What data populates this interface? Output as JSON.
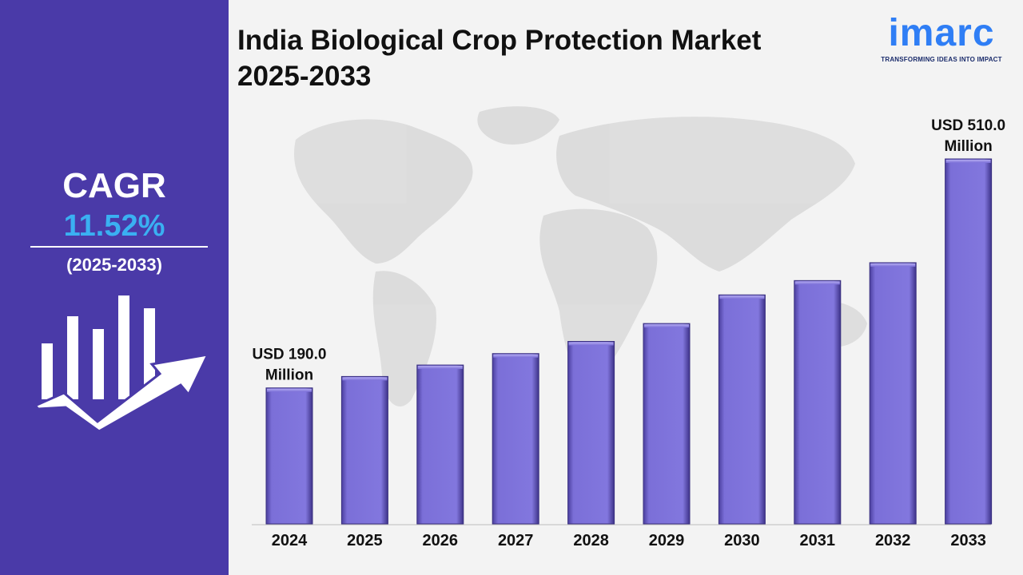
{
  "sidebar": {
    "cagr_label": "CAGR",
    "cagr_value": "11.52%",
    "cagr_period": "(2025-2033)"
  },
  "header": {
    "title_line1": "India Biological Crop Protection Market",
    "title_line2": "2025-2033"
  },
  "logo": {
    "name": "imarc",
    "tagline": "TRANSFORMING IDEAS INTO IMPACT"
  },
  "colors": {
    "sidebar": "#4a3aa8",
    "bar": "#7b6fd8",
    "cagr_value": "#3ab0f2",
    "logo": "#2f7ef5"
  },
  "chart_data": {
    "type": "bar",
    "title": "India Biological Crop Protection Market 2025-2033",
    "categories": [
      "2024",
      "2025",
      "2026",
      "2027",
      "2028",
      "2029",
      "2030",
      "2031",
      "2032",
      "2033"
    ],
    "values": [
      190.0,
      206,
      222,
      238,
      255,
      280,
      320,
      340,
      365,
      510.0
    ],
    "annotations": [
      {
        "category": "2024",
        "lines": [
          "USD 190.0",
          "Million"
        ]
      },
      {
        "category": "2033",
        "lines": [
          "USD 510.0",
          "Million"
        ]
      }
    ],
    "ylim": [
      0,
      510
    ],
    "grid": false
  }
}
